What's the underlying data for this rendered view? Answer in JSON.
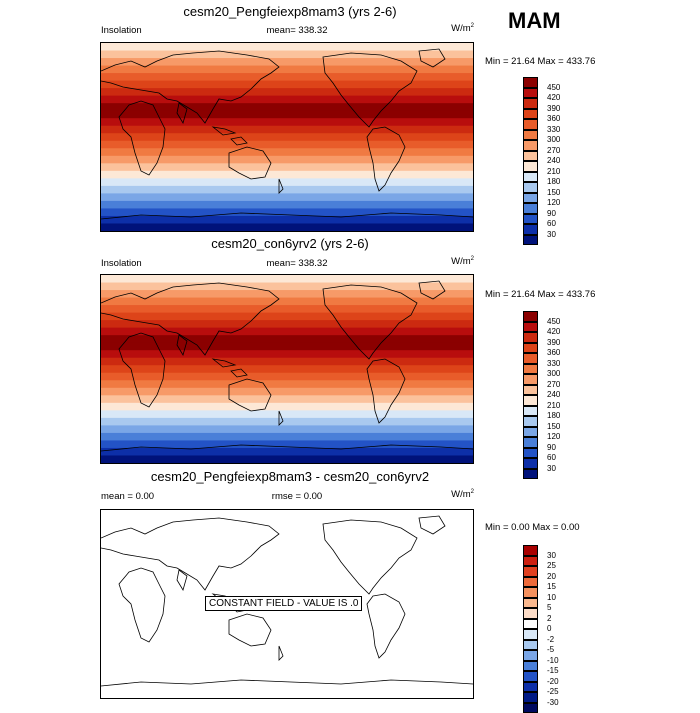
{
  "season": "MAM",
  "panels": [
    {
      "title": "cesm20_Pengfeiexp8mam3 (yrs 2-6)",
      "left_label": "Insolation",
      "center_label": "mean= 338.32",
      "units_base": "W/m",
      "units_sup": "2",
      "minmax": "Min =  21.64 Max = 433.76",
      "levels": [
        "450",
        "420",
        "390",
        "360",
        "330",
        "300",
        "270",
        "240",
        "210",
        "180",
        "150",
        "120",
        "90",
        "60",
        "30"
      ],
      "colors": [
        "#8b0000",
        "#b80d0d",
        "#cc2a10",
        "#dd4419",
        "#e85c2a",
        "#f07a42",
        "#f79a68",
        "#fbc29c",
        "#fde8d6",
        "#d9e8f7",
        "#a9c9ef",
        "#7aa6e6",
        "#4a7fd8",
        "#2353c6",
        "#0d2fa8",
        "#00127a"
      ]
    },
    {
      "title": "cesm20_con6yrv2 (yrs 2-6)",
      "left_label": "Insolation",
      "center_label": "mean= 338.32",
      "units_base": "W/m",
      "units_sup": "2",
      "minmax": "Min =  21.64 Max = 433.76",
      "levels": [
        "450",
        "420",
        "390",
        "360",
        "330",
        "300",
        "270",
        "240",
        "210",
        "180",
        "150",
        "120",
        "90",
        "60",
        "30"
      ],
      "colors": [
        "#8b0000",
        "#b80d0d",
        "#cc2a10",
        "#dd4419",
        "#e85c2a",
        "#f07a42",
        "#f79a68",
        "#fbc29c",
        "#fde8d6",
        "#d9e8f7",
        "#a9c9ef",
        "#7aa6e6",
        "#4a7fd8",
        "#2353c6",
        "#0d2fa8",
        "#00127a"
      ]
    },
    {
      "title": "cesm20_Pengfeiexp8mam3 - cesm20_con6yrv2",
      "left_label": "mean =   0.00",
      "center_label": "rmse =   0.00",
      "units_base": "W/m",
      "units_sup": "2",
      "minmax": "Min =   0.00 Max =   0.00",
      "note": "CONSTANT FIELD - VALUE IS .0",
      "levels": [
        "30",
        "25",
        "20",
        "15",
        "10",
        "5",
        "2",
        "0",
        "-2",
        "-5",
        "-10",
        "-15",
        "-20",
        "-25",
        "-30"
      ],
      "colors": [
        "#a80000",
        "#cc1f10",
        "#e04020",
        "#ee6a3a",
        "#f5915e",
        "#fab88e",
        "#fdddc8",
        "#ffffff",
        "#d9e8f7",
        "#a9c9ef",
        "#7aa6e6",
        "#4a7fd8",
        "#2353c6",
        "#0d2fa8",
        "#001a86",
        "#000a60"
      ]
    }
  ]
}
